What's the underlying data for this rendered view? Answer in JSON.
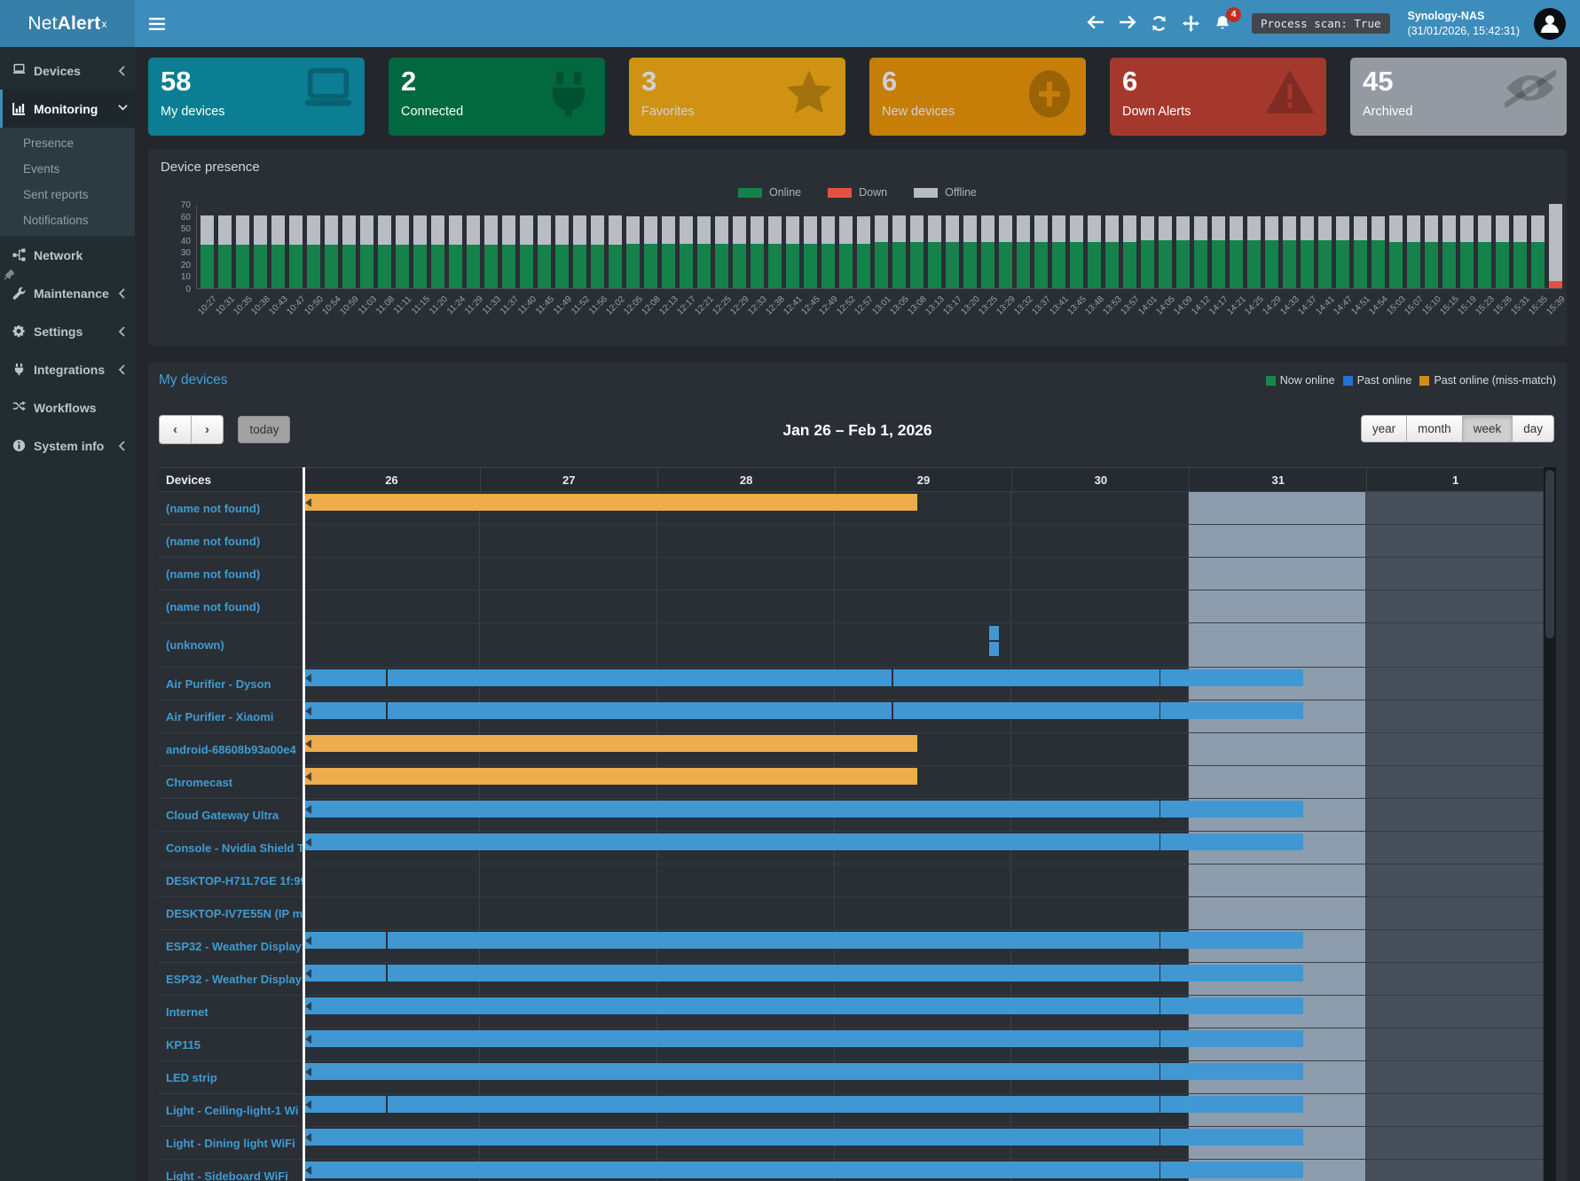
{
  "navbar": {
    "brand_net": "Net",
    "brand_alert": "Alert",
    "brand_sup": "x",
    "bell_badge": "4",
    "process_scan": "Process scan: True",
    "host": "Synology-NAS",
    "host_time": "(31/01/2026, 15:42:31)"
  },
  "sidebar": {
    "items": [
      {
        "label": "Devices",
        "icon": "laptop",
        "chevron": "left"
      },
      {
        "label": "Monitoring",
        "icon": "chart",
        "chevron": "down",
        "active": true,
        "sub": [
          "Presence",
          "Events",
          "Sent reports",
          "Notifications"
        ]
      },
      {
        "label": "Network",
        "icon": "network"
      },
      {
        "label": "Maintenance",
        "icon": "wrench",
        "chevron": "left"
      },
      {
        "label": "Settings",
        "icon": "gear",
        "chevron": "left"
      },
      {
        "label": "Integrations",
        "icon": "plug",
        "chevron": "left"
      },
      {
        "label": "Workflows",
        "icon": "shuffle"
      },
      {
        "label": "System info",
        "icon": "info",
        "chevron": "left"
      }
    ]
  },
  "cards": [
    {
      "value": "58",
      "label": "My devices",
      "bg": "#0b7e93",
      "icon": "laptop",
      "text": "#ffffff"
    },
    {
      "value": "2",
      "label": "Connected",
      "bg": "#01683f",
      "icon": "plug",
      "text": "#ffffff"
    },
    {
      "value": "3",
      "label": "Favorites",
      "bg": "#d09212",
      "icon": "star",
      "text": "#ccd2d8"
    },
    {
      "value": "6",
      "label": "New devices",
      "bg": "#c67e08",
      "icon": "plus",
      "text": "#ccd2d8"
    },
    {
      "value": "6",
      "label": "Down Alerts",
      "bg": "#a5382d",
      "icon": "warning",
      "text": "#ffffff"
    },
    {
      "value": "45",
      "label": "Archived",
      "bg": "#949aa2",
      "icon": "eyeslash",
      "text": "#ffffff"
    }
  ],
  "presence": {
    "title": "Device presence",
    "legend": [
      {
        "label": "Online",
        "color": "#15814b"
      },
      {
        "label": "Down",
        "color": "#e25143"
      },
      {
        "label": "Offline",
        "color": "#b9bdc3"
      }
    ]
  },
  "chart_data": {
    "type": "bar",
    "stacked": true,
    "title": "Device presence",
    "ylabel": "",
    "ylim": [
      0,
      70
    ],
    "yticks": [
      70,
      60,
      50,
      40,
      30,
      20,
      10,
      0
    ],
    "legend_position": "top",
    "x": [
      "10:27",
      "10:31",
      "10:35",
      "10:38",
      "10:43",
      "10:47",
      "10:50",
      "10:54",
      "10:59",
      "11:03",
      "11:08",
      "11:11",
      "11:15",
      "11:20",
      "11:24",
      "11:29",
      "11:33",
      "11:37",
      "11:40",
      "11:45",
      "11:49",
      "11:52",
      "11:56",
      "12:02",
      "12:05",
      "12:08",
      "12:13",
      "12:17",
      "12:21",
      "12:25",
      "12:29",
      "12:33",
      "12:38",
      "12:41",
      "12:45",
      "12:49",
      "12:52",
      "12:57",
      "13:01",
      "13:05",
      "13:08",
      "13:13",
      "13:17",
      "13:20",
      "13:25",
      "13:29",
      "13:32",
      "13:37",
      "13:41",
      "13:45",
      "13:48",
      "13:53",
      "13:57",
      "14:01",
      "14:05",
      "14:09",
      "14:12",
      "14:17",
      "14:21",
      "14:25",
      "14:29",
      "14:33",
      "14:37",
      "14:41",
      "14:47",
      "14:51",
      "14:54",
      "15:03",
      "15:07",
      "15:10",
      "15:15",
      "15:19",
      "15:23",
      "15:26",
      "15:31",
      "15:35",
      "15:39"
    ],
    "series": [
      {
        "name": "Online",
        "color": "#15814b",
        "values": [
          36,
          36,
          36,
          36,
          36,
          36,
          36,
          36,
          36,
          36,
          36,
          36,
          36,
          36,
          36,
          36,
          36,
          36,
          36,
          36,
          36,
          36,
          36,
          36,
          37,
          37,
          37,
          37,
          37,
          37,
          37,
          37,
          37,
          37,
          37,
          37,
          37,
          37,
          38,
          38,
          38,
          38,
          38,
          38,
          38,
          38,
          38,
          38,
          38,
          38,
          38,
          38,
          38,
          40,
          40,
          40,
          40,
          40,
          40,
          40,
          40,
          40,
          40,
          40,
          40,
          40,
          40,
          38,
          38,
          38,
          38,
          38,
          38,
          38,
          38,
          38,
          0
        ]
      },
      {
        "name": "Down",
        "color": "#e25143",
        "values": [
          0,
          0,
          0,
          0,
          0,
          0,
          0,
          0,
          0,
          0,
          0,
          0,
          0,
          0,
          0,
          0,
          0,
          0,
          0,
          0,
          0,
          0,
          0,
          0,
          0,
          0,
          0,
          0,
          0,
          0,
          0,
          0,
          0,
          0,
          0,
          0,
          0,
          0,
          0,
          0,
          0,
          0,
          0,
          0,
          0,
          0,
          0,
          0,
          0,
          0,
          0,
          0,
          0,
          0,
          0,
          0,
          0,
          0,
          0,
          0,
          0,
          0,
          0,
          0,
          0,
          0,
          0,
          0,
          0,
          0,
          0,
          0,
          0,
          0,
          0,
          0,
          6
        ]
      },
      {
        "name": "Offline",
        "color": "#b9bdc3",
        "values": [
          24,
          24,
          24,
          24,
          24,
          24,
          24,
          24,
          24,
          24,
          24,
          24,
          24,
          24,
          24,
          24,
          24,
          24,
          24,
          24,
          24,
          24,
          24,
          24,
          23,
          23,
          23,
          23,
          23,
          23,
          23,
          23,
          23,
          23,
          23,
          23,
          23,
          23,
          22,
          22,
          22,
          22,
          22,
          22,
          22,
          22,
          22,
          22,
          22,
          22,
          22,
          22,
          22,
          20,
          20,
          20,
          20,
          20,
          20,
          20,
          20,
          20,
          20,
          20,
          20,
          20,
          20,
          22,
          22,
          22,
          22,
          22,
          22,
          22,
          22,
          22,
          64
        ]
      }
    ]
  },
  "timeline": {
    "link": "My devices",
    "legend": [
      {
        "label": "Now online",
        "color": "#1d8649"
      },
      {
        "label": "Past online",
        "color": "#2273d4"
      },
      {
        "label": "Past online (miss-match)",
        "color": "#cd8d18"
      }
    ],
    "toolbar": {
      "prev": "‹",
      "next": "›",
      "today": "today",
      "title": "Jan 26 – Feb 1, 2026",
      "views": [
        "year",
        "month",
        "week",
        "day"
      ],
      "active_view": "week"
    },
    "header_device_col": "Devices",
    "days": [
      "26",
      "27",
      "28",
      "29",
      "30",
      "31",
      "1"
    ],
    "today_index": 5,
    "future_index": 6,
    "rows": [
      {
        "name": "(name not found)",
        "lines": [
          [
            {
              "s": 0,
              "e": 3.475,
              "c": "o",
              "n": 1
            }
          ]
        ]
      },
      {
        "name": "(name not found)",
        "lines": [
          []
        ]
      },
      {
        "name": "(name not found)",
        "lines": [
          []
        ]
      },
      {
        "name": "(name not found)",
        "lines": [
          []
        ]
      },
      {
        "name": "(unknown)",
        "tall": true,
        "lines": [
          [
            {
              "s": 3.875,
              "e": 3.935,
              "c": "b"
            }
          ],
          [
            {
              "s": 3.875,
              "e": 3.935,
              "c": "b"
            }
          ]
        ]
      },
      {
        "name": "Air Purifier - Dyson",
        "lines": [
          [
            {
              "s": 0,
              "e": 0.48,
              "c": "b",
              "n": 1
            },
            {
              "s": 0.48,
              "e": 3.33,
              "c": "b"
            },
            {
              "s": 3.33,
              "e": 4.84,
              "c": "b"
            },
            {
              "s": 4.84,
              "e": 5.65,
              "c": "b"
            }
          ]
        ]
      },
      {
        "name": "Air Purifier - Xiaomi",
        "lines": [
          [
            {
              "s": 0,
              "e": 0.48,
              "c": "b",
              "n": 1
            },
            {
              "s": 0.48,
              "e": 3.33,
              "c": "b"
            },
            {
              "s": 3.33,
              "e": 4.84,
              "c": "b"
            },
            {
              "s": 4.84,
              "e": 5.65,
              "c": "b"
            }
          ]
        ]
      },
      {
        "name": "android-68608b93a00e4",
        "lines": [
          [
            {
              "s": 0,
              "e": 3.475,
              "c": "o",
              "n": 1
            }
          ]
        ]
      },
      {
        "name": "Chromecast",
        "lines": [
          [
            {
              "s": 0,
              "e": 3.475,
              "c": "o",
              "n": 1
            }
          ]
        ]
      },
      {
        "name": "Cloud Gateway Ultra",
        "lines": [
          [
            {
              "s": 0,
              "e": 4.84,
              "c": "b",
              "n": 1
            },
            {
              "s": 4.84,
              "e": 5.65,
              "c": "b"
            }
          ]
        ]
      },
      {
        "name": "Console - Nvidia Shield T",
        "lines": [
          [
            {
              "s": 0,
              "e": 4.84,
              "c": "b",
              "n": 1
            },
            {
              "s": 4.84,
              "e": 5.65,
              "c": "b"
            }
          ]
        ]
      },
      {
        "name": "DESKTOP-H71L7GE 1f:99",
        "lines": [
          []
        ]
      },
      {
        "name": "DESKTOP-IV7E55N (IP m",
        "lines": [
          []
        ]
      },
      {
        "name": "ESP32 - Weather Display",
        "lines": [
          [
            {
              "s": 0,
              "e": 0.48,
              "c": "b",
              "n": 1
            },
            {
              "s": 0.48,
              "e": 4.84,
              "c": "b"
            },
            {
              "s": 4.84,
              "e": 5.65,
              "c": "b"
            }
          ]
        ]
      },
      {
        "name": "ESP32 - Weather Display",
        "lines": [
          [
            {
              "s": 0,
              "e": 0.48,
              "c": "b",
              "n": 1
            },
            {
              "s": 0.48,
              "e": 4.84,
              "c": "b"
            },
            {
              "s": 4.84,
              "e": 5.65,
              "c": "b"
            }
          ]
        ]
      },
      {
        "name": "Internet",
        "lines": [
          [
            {
              "s": 0,
              "e": 4.84,
              "c": "b",
              "n": 1
            },
            {
              "s": 4.84,
              "e": 5.65,
              "c": "b"
            }
          ]
        ]
      },
      {
        "name": "KP115",
        "lines": [
          [
            {
              "s": 0,
              "e": 4.84,
              "c": "b",
              "n": 1
            },
            {
              "s": 4.84,
              "e": 5.65,
              "c": "b"
            }
          ]
        ]
      },
      {
        "name": "LED strip",
        "lines": [
          [
            {
              "s": 0,
              "e": 4.84,
              "c": "b",
              "n": 1
            },
            {
              "s": 4.84,
              "e": 5.65,
              "c": "b"
            }
          ]
        ]
      },
      {
        "name": "Light - Ceiling-light-1 Wi",
        "lines": [
          [
            {
              "s": 0,
              "e": 0.48,
              "c": "b",
              "n": 1
            },
            {
              "s": 0.48,
              "e": 4.84,
              "c": "b"
            },
            {
              "s": 4.84,
              "e": 5.65,
              "c": "b"
            }
          ]
        ]
      },
      {
        "name": "Light - Dining light WiFi",
        "lines": [
          [
            {
              "s": 0,
              "e": 4.84,
              "c": "b",
              "n": 1
            },
            {
              "s": 4.84,
              "e": 5.65,
              "c": "b"
            }
          ]
        ]
      },
      {
        "name": "Light - Sideboard WiFi",
        "lines": [
          [
            {
              "s": 0,
              "e": 4.84,
              "c": "b",
              "n": 1
            },
            {
              "s": 4.84,
              "e": 5.65,
              "c": "b"
            }
          ]
        ]
      }
    ]
  }
}
